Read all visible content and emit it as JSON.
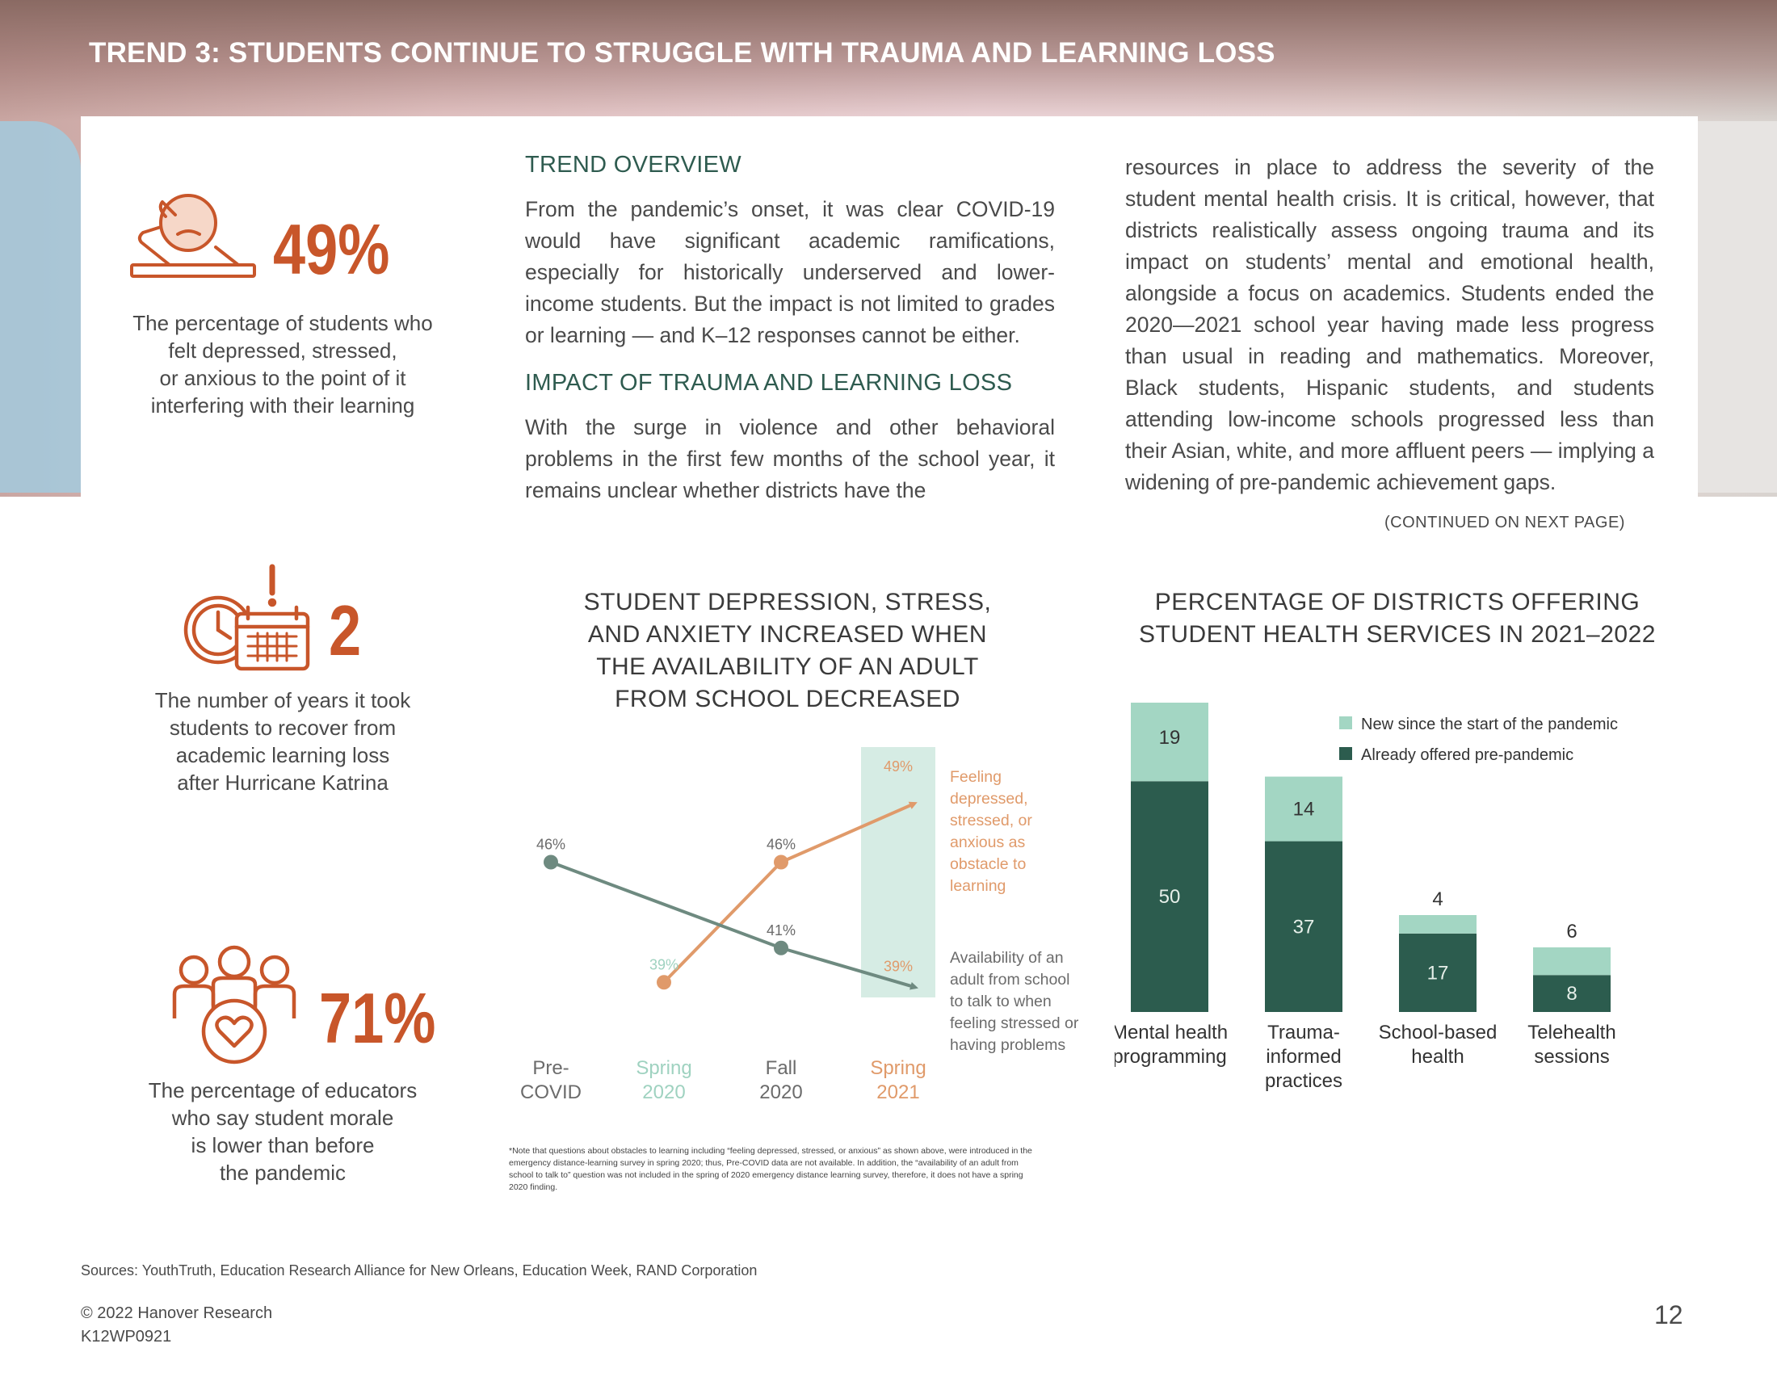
{
  "header": {
    "title": "TREND 3: STUDENTS CONTINUE TO STRUGGLE WITH TRAUMA AND LEARNING LOSS"
  },
  "stats": [
    {
      "icon": "depressed-student-icon",
      "value": "49%",
      "caption_lines": [
        "The percentage of students who",
        "felt depressed, stressed,",
        "or anxious to the point of it",
        "interfering with their learning"
      ]
    },
    {
      "icon": "calendar-clock-alert-icon",
      "value": "2",
      "caption_lines": [
        "The number of years it took",
        "students to recover from",
        "academic learning loss",
        "after Hurricane Katrina"
      ]
    },
    {
      "icon": "educators-heart-icon",
      "value": "71%",
      "caption_lines": [
        "The percentage of educators",
        "who say student morale",
        "is lower than before",
        "the pandemic"
      ]
    }
  ],
  "overview": {
    "heading": "TREND OVERVIEW",
    "body": "From the pandemic’s onset, it was clear COVID-19 would have significant academic ramifications, especially for historically underserved and lower-income students. But the impact is not limited to grades or learning — and K–12 responses cannot be either.",
    "impact_heading": "IMPACT OF TRAUMA AND LEARNING LOSS",
    "impact_body": "With the surge in violence and other behavioral problems in the first few months of the school year, it remains unclear whether districts have the",
    "col3_body": "resources in place to address the severity of the student mental health crisis. It is critical, however, that districts realistically assess ongoing trauma and its impact on students’ mental and emotional health, alongside a focus on academics. Students ended the 2020—2021 school year having made less progress than usual in reading and mathematics. Moreover, Black students, Hispanic students, and students attending low-income schools progressed less than their Asian, white, and more affluent peers — implying a widening of pre-pandemic achievement gaps.",
    "continued": "(CONTINUED ON NEXT PAGE)"
  },
  "chart_data": [
    {
      "type": "line",
      "title_lines": [
        "STUDENT DEPRESSION, STRESS,",
        "AND ANXIETY INCREASED WHEN",
        "THE AVAILABILITY OF AN ADULT",
        "FROM SCHOOL DECREASED"
      ],
      "categories": [
        [
          "Pre-",
          "COVID"
        ],
        [
          "Spring",
          "2020"
        ],
        [
          "Fall",
          "2020"
        ],
        [
          "Spring",
          "2021"
        ]
      ],
      "category_colors": [
        "#6b6b6b",
        "#9fd2c0",
        "#6b6b6b",
        "#e09a6a"
      ],
      "series": [
        {
          "name": "Feeling depressed, stressed, or anxious as obstacle to learning",
          "label_lines": [
            "Feeling",
            "depressed,",
            "stressed, or",
            "anxious as",
            "obstacle to",
            "learning"
          ],
          "color": "#e09a6a",
          "values": [
            null,
            39,
            46,
            49
          ]
        },
        {
          "name": "Availability of an adult from school to talk to when feeling stressed or having problems",
          "label_lines": [
            "Availability of an",
            "adult from school",
            "to talk to when",
            "feeling stressed or",
            "having problems"
          ],
          "color": "#6e8a80",
          "values": [
            46,
            null,
            41,
            39
          ]
        }
      ],
      "highlight_category": "Spring 2021",
      "ylim": [
        36,
        52
      ],
      "footnote": "*Note that questions about obstacles to learning including “feeling depressed, stressed, or anxious” as shown above, were introduced in the emergency distance-learning survey in spring 2020; thus, Pre-COVID data are not available. In addition, the “availability of an adult from school to talk to” question was not included in the spring of 2020 emergency distance learning survey, therefore, it does not have a spring 2020 finding."
    },
    {
      "type": "bar",
      "stacked": true,
      "title_lines": [
        "PERCENTAGE OF DISTRICTS OFFERING",
        "STUDENT HEALTH SERVICES IN 2021–2022"
      ],
      "categories": [
        [
          "Mental health",
          "programming"
        ],
        [
          "Trauma-",
          "informed",
          "practices"
        ],
        [
          "School-based",
          "health"
        ],
        [
          "Telehealth",
          "sessions"
        ]
      ],
      "series": [
        {
          "name": "Already offered pre-pandemic",
          "color": "#2c5c4e",
          "values": [
            50,
            37,
            17,
            8
          ]
        },
        {
          "name": "New since the start of the pandemic",
          "color": "#a3d6c3",
          "values": [
            19,
            14,
            4,
            6
          ]
        }
      ],
      "legend_position": "top-right",
      "ylim": [
        0,
        70
      ]
    }
  ],
  "footer": {
    "sources": "Sources: YouthTruth, Education Research Alliance for New Orleans, Education Week, RAND Corporation",
    "copyright": "© 2022 Hanover Research",
    "code": "K12WP0921",
    "page": "12"
  }
}
